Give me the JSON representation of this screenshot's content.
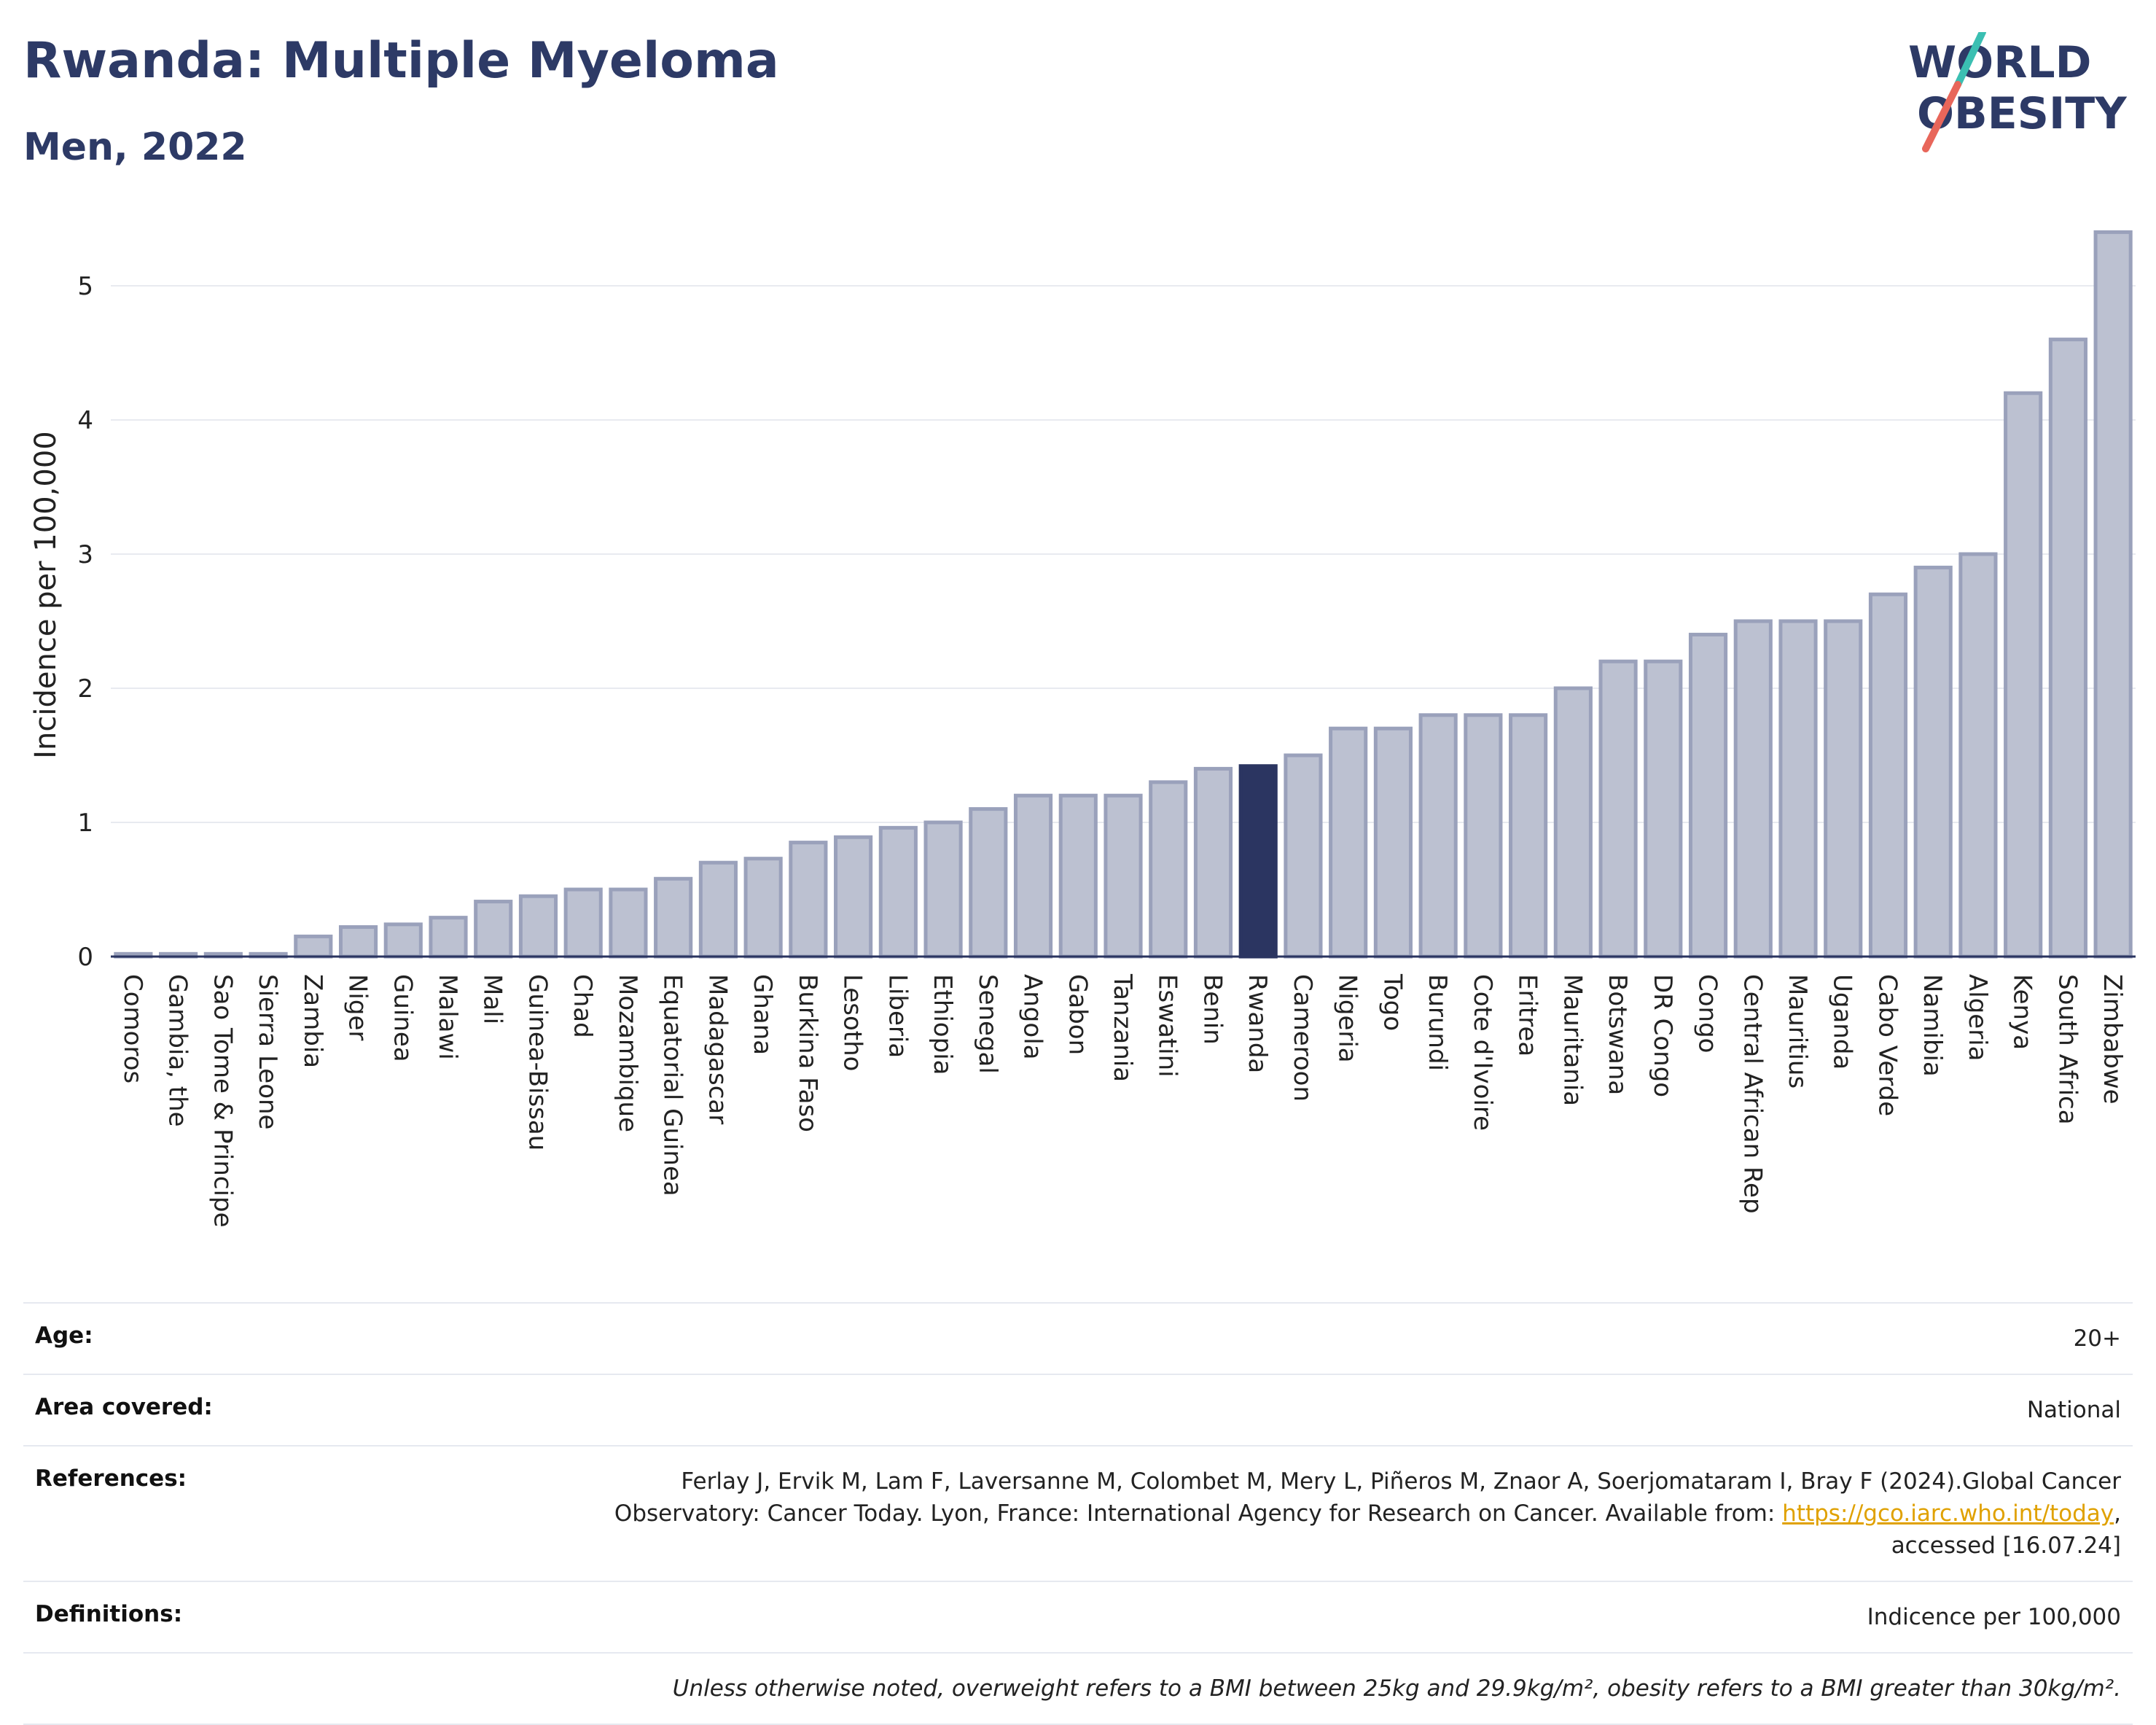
{
  "header": {
    "title": "Rwanda: Multiple Myeloma",
    "subtitle": "Men, 2022",
    "logo_line1": "WORLD",
    "logo_line2": "OBESITY"
  },
  "colors": {
    "bar": "#bcc1d1",
    "bar_stroke": "#9aa1bb",
    "highlight": "#2b3561",
    "grid": "#e8eaf0",
    "axis": "#2b3561",
    "logo_teal": "#3bbfb2",
    "logo_red": "#e8665a"
  },
  "chart_data": {
    "type": "bar",
    "ylabel": "Incidence per 100,000",
    "xlabel": "",
    "ylim": [
      0,
      5.5
    ],
    "yticks": [
      0,
      1,
      2,
      3,
      4,
      5
    ],
    "highlight": "Rwanda",
    "grid": true,
    "categories": [
      "Comoros",
      "Gambia, the",
      "Sao Tome & Principe",
      "Sierra Leone",
      "Zambia",
      "Niger",
      "Guinea",
      "Malawi",
      "Mali",
      "Guinea-Bissau",
      "Chad",
      "Mozambique",
      "Equatorial Guinea",
      "Madagascar",
      "Ghana",
      "Burkina Faso",
      "Lesotho",
      "Liberia",
      "Ethiopia",
      "Senegal",
      "Angola",
      "Gabon",
      "Tanzania",
      "Eswatini",
      "Benin",
      "Rwanda",
      "Cameroon",
      "Nigeria",
      "Togo",
      "Burundi",
      "Cote d'Ivoire",
      "Eritrea",
      "Mauritania",
      "Botswana",
      "DR Congo",
      "Congo",
      "Central African Rep",
      "Mauritius",
      "Uganda",
      "Cabo Verde",
      "Namibia",
      "Algeria",
      "Kenya",
      "South Africa",
      "Zimbabwe"
    ],
    "values": [
      0.02,
      0.02,
      0.02,
      0.02,
      0.15,
      0.22,
      0.24,
      0.29,
      0.41,
      0.45,
      0.5,
      0.5,
      0.58,
      0.7,
      0.73,
      0.85,
      0.89,
      0.96,
      1.0,
      1.1,
      1.2,
      1.2,
      1.2,
      1.3,
      1.4,
      1.42,
      1.5,
      1.7,
      1.7,
      1.8,
      1.8,
      1.8,
      2.0,
      2.2,
      2.2,
      2.4,
      2.5,
      2.5,
      2.5,
      2.7,
      2.9,
      3.0,
      4.2,
      4.6,
      5.4
    ]
  },
  "meta": {
    "age_label": "Age:",
    "age_value": "20+",
    "area_label": "Area covered:",
    "area_value": "National",
    "references_label": "References:",
    "references_text": "Ferlay J, Ervik M, Lam F, Laversanne M, Colombet M, Mery L, Piñeros M, Znaor A, Soerjomataram I, Bray F (2024).Global Cancer Observatory: Cancer Today. Lyon, France: International Agency for Research on Cancer. Available from: ",
    "references_link": "https://gco.iarc.who.int/today",
    "references_tail": ", accessed [16.07.24]",
    "definitions_label": "Definitions:",
    "definitions_value": "Indicence per 100,000",
    "note": "Unless otherwise noted, overweight refers to a BMI between 25kg and 29.9kg/m², obesity refers to a BMI greater than 30kg/m²."
  }
}
